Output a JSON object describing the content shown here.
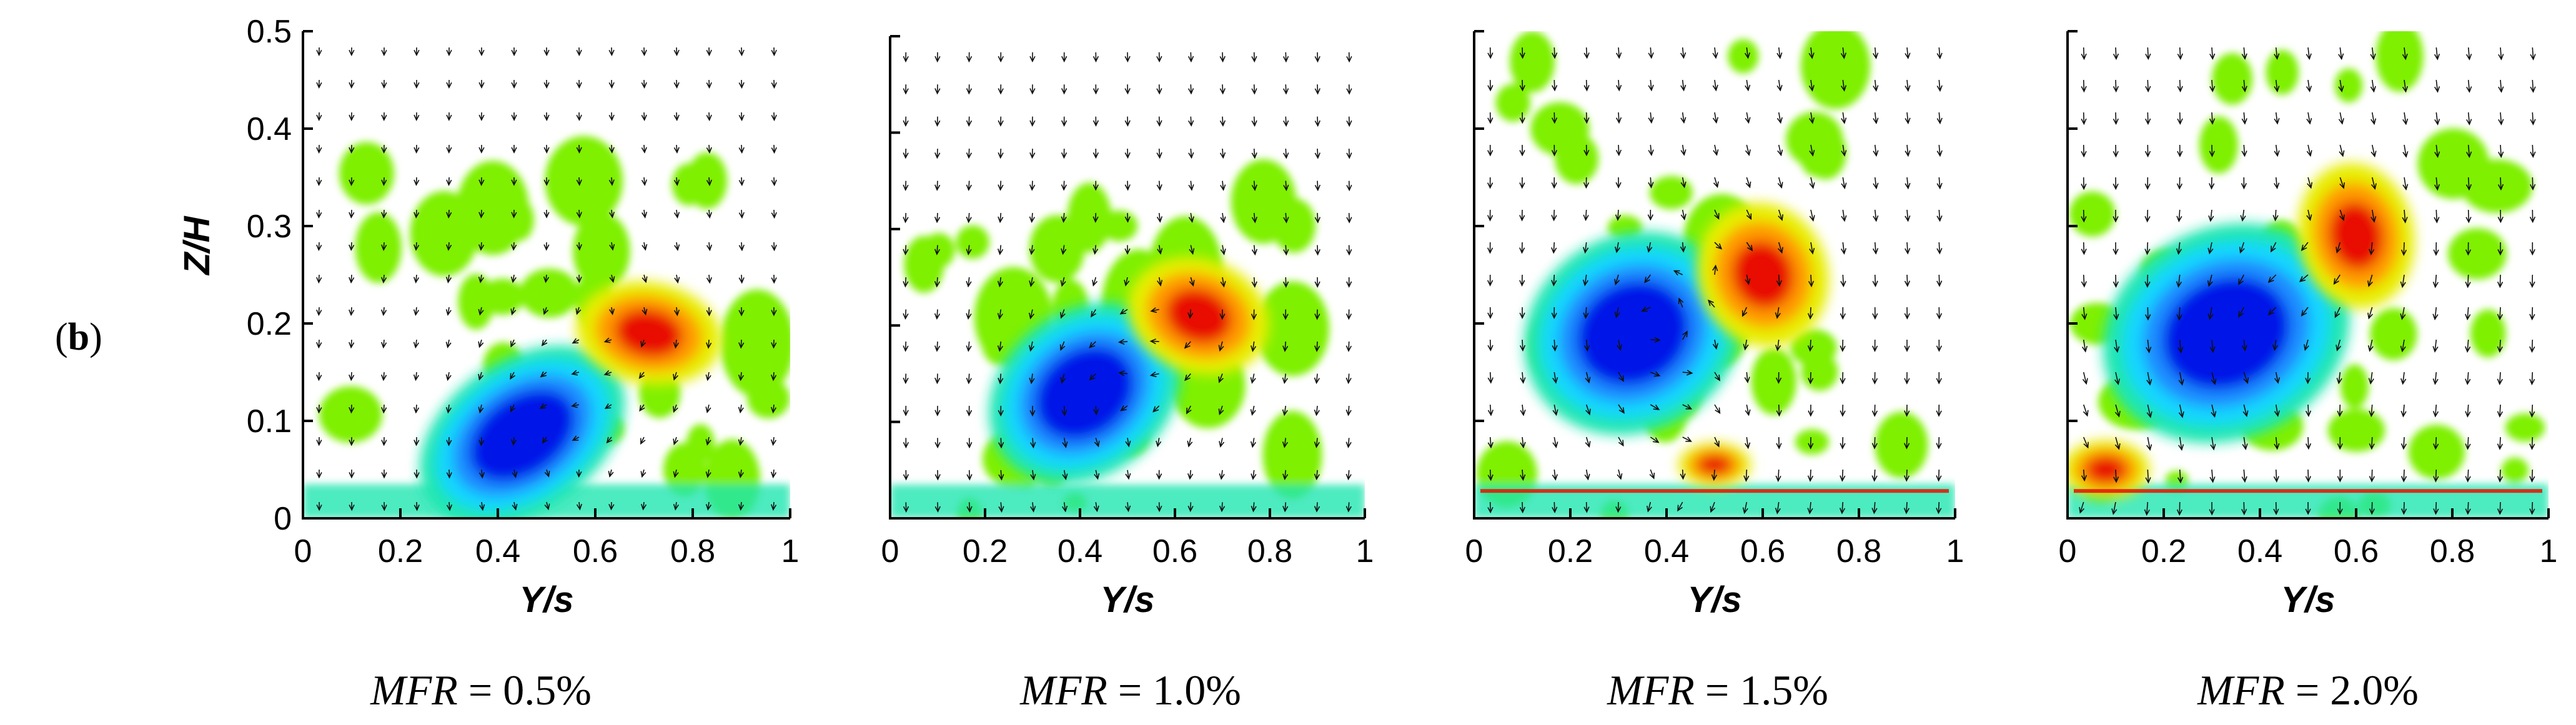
{
  "panel_tag": {
    "open": "(",
    "letter": "b",
    "close": ")"
  },
  "colors": {
    "strong_negative": "#0018e8",
    "negative": "#1e8cff",
    "weak_negative": "#19d6ff",
    "near_zero_low": "#1fe6b0",
    "near_zero": "#7ef000",
    "weak_positive": "#e7ee00",
    "positive": "#ff9a00",
    "strong_positive": "#e81000",
    "vector": "#111111"
  },
  "chart_data": [
    {
      "type": "heatmap",
      "xlabel": "Y/s",
      "ylabel": "Z/H",
      "xlim": [
        0,
        1
      ],
      "ylim": [
        0,
        0.5
      ],
      "xticks": [
        "0",
        "0.2",
        "0.4",
        "0.6",
        "0.8",
        "1"
      ],
      "yticks": [
        "0",
        "0.1",
        "0.2",
        "0.3",
        "0.4",
        "0.5"
      ],
      "caption": {
        "var": "MFR",
        "eq": " = ",
        "value": "0.5%"
      },
      "vortices": [
        {
          "sign": "negative",
          "y": 0.45,
          "z": 0.085,
          "ry": 0.15,
          "rz": 0.05,
          "rot": 35
        },
        {
          "sign": "positive",
          "y": 0.71,
          "z": 0.19,
          "ry": 0.07,
          "rz": 0.05,
          "rot": 80
        }
      ],
      "mask_top": 0.36,
      "vector_scale": 0.4
    },
    {
      "type": "heatmap",
      "xlabel": "Y/s",
      "ylabel": "",
      "xlim": [
        0,
        1
      ],
      "ylim": [
        0,
        0.5
      ],
      "xticks": [
        "0",
        "0.2",
        "0.4",
        "0.6",
        "0.8",
        "1"
      ],
      "yticks": [],
      "caption": {
        "var": "MFR",
        "eq": " = ",
        "value": "1.0%"
      },
      "vortices": [
        {
          "sign": "negative",
          "y": 0.41,
          "z": 0.13,
          "ry": 0.14,
          "rz": 0.055,
          "rot": 38
        },
        {
          "sign": "positive",
          "y": 0.65,
          "z": 0.21,
          "ry": 0.08,
          "rz": 0.05,
          "rot": 70
        }
      ],
      "mask_top": 0.38,
      "vector_scale": 0.55
    },
    {
      "type": "heatmap",
      "xlabel": "Y/s",
      "ylabel": "",
      "xlim": [
        0,
        1
      ],
      "ylim": [
        0,
        0.5
      ],
      "xticks": [
        "0",
        "0.2",
        "0.4",
        "0.6",
        "0.8",
        "1"
      ],
      "yticks": [],
      "caption": {
        "var": "MFR",
        "eq": " = ",
        "value": "1.5%"
      },
      "vortices": [
        {
          "sign": "negative",
          "y": 0.33,
          "z": 0.19,
          "ry": 0.15,
          "rz": 0.065,
          "rot": 30
        },
        {
          "sign": "positive",
          "y": 0.6,
          "z": 0.25,
          "ry": 0.09,
          "rz": 0.05,
          "rot": 20
        },
        {
          "sign": "positive",
          "y": 0.5,
          "z": 0.055,
          "ry": 0.05,
          "rz": 0.015,
          "rot": 0
        }
      ],
      "mask_top": 0.48,
      "vector_scale": 0.7
    },
    {
      "type": "heatmap",
      "xlabel": "Y/s",
      "ylabel": "",
      "xlim": [
        0,
        1
      ],
      "ylim": [
        0,
        0.5
      ],
      "xticks": [
        "0",
        "0.2",
        "0.4",
        "0.6",
        "0.8",
        "1"
      ],
      "yticks": [],
      "caption": {
        "var": "MFR",
        "eq": " = ",
        "value": "2.0%"
      },
      "vortices": [
        {
          "sign": "negative",
          "y": 0.33,
          "z": 0.19,
          "ry": 0.17,
          "rz": 0.07,
          "rot": 25
        },
        {
          "sign": "positive",
          "y": 0.6,
          "z": 0.29,
          "ry": 0.08,
          "rz": 0.05,
          "rot": 10
        },
        {
          "sign": "positive",
          "y": 0.08,
          "z": 0.05,
          "ry": 0.06,
          "rz": 0.02,
          "rot": 0
        }
      ],
      "mask_top": 0.48,
      "vector_scale": 0.8
    }
  ]
}
